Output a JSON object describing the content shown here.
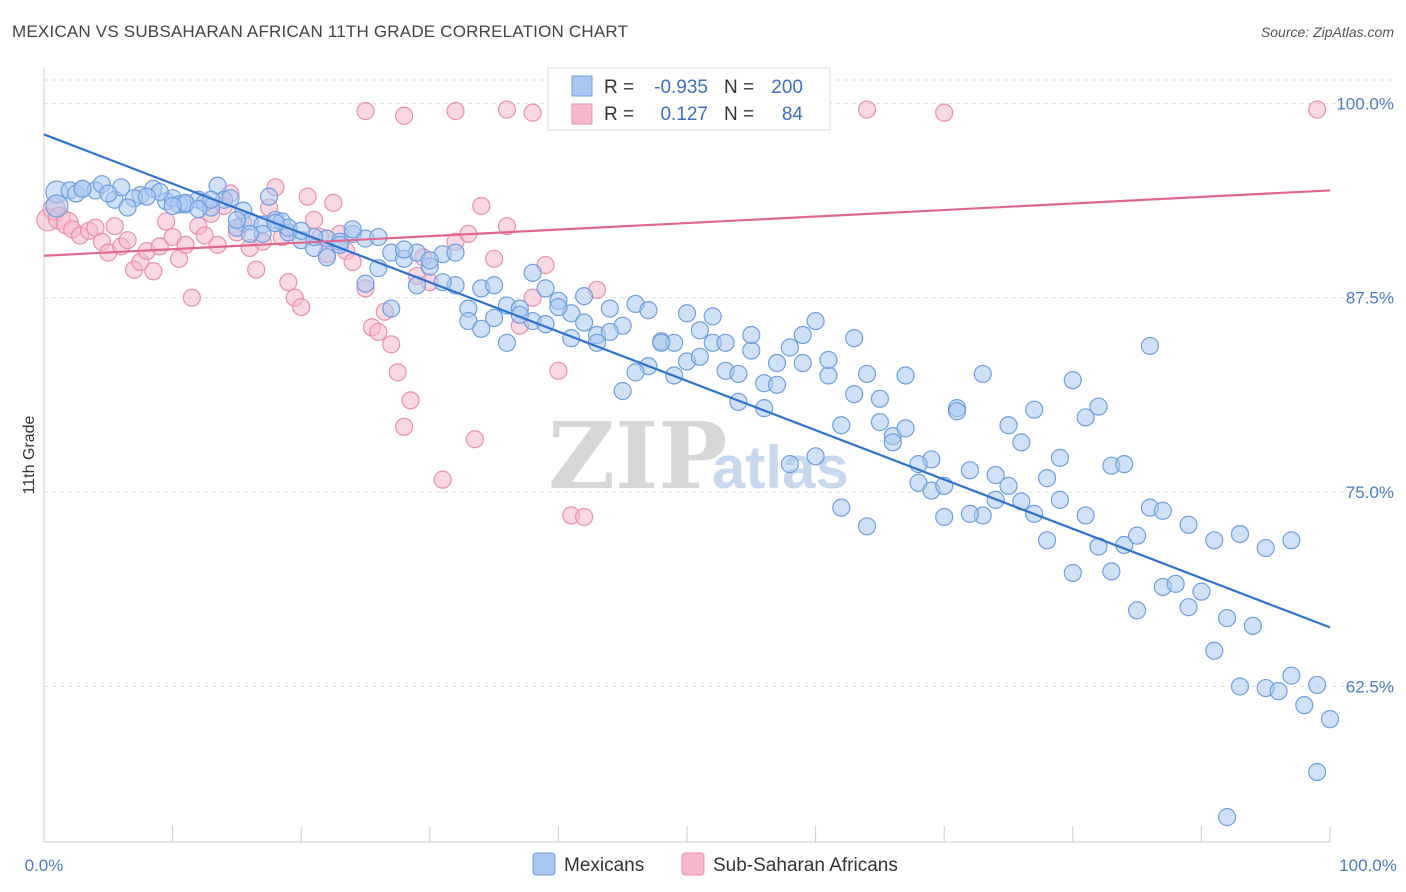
{
  "title": "MEXICAN VS SUBSAHARAN AFRICAN 11TH GRADE CORRELATION CHART",
  "source": "Source: ZipAtlas.com",
  "watermark": {
    "zip": "ZIP",
    "atlas": "atlas"
  },
  "colors": {
    "blue_fill": "#a9c8f0",
    "blue_stroke": "#6f9fe0",
    "blue_line": "#2f73d0",
    "pink_fill": "#f5b8cb",
    "pink_stroke": "#ec8fae",
    "pink_line": "#e0688f",
    "grid": "#dddddd",
    "tick_text": "#4a7cc9"
  },
  "legend_box": {
    "rows": [
      {
        "r_label": "R =",
        "r_value": "-0.935",
        "n_label": "N =",
        "n_value": "200",
        "series": "Mexicans"
      },
      {
        "r_label": "R =",
        "r_value": "0.127",
        "n_label": "N =",
        "n_value": "84",
        "series": "Sub-Saharan Africans"
      }
    ]
  },
  "chart_data": {
    "type": "scatter",
    "title": "MEXICAN VS SUBSAHARAN AFRICAN 11TH GRADE CORRELATION CHART",
    "xlabel": "",
    "ylabel": "11th Grade",
    "xlim": [
      0,
      100
    ],
    "ylim": [
      52.5,
      101.5
    ],
    "x_tick_labels": [
      "0.0%",
      "100.0%"
    ],
    "y_ticks": [
      62.5,
      75.0,
      87.5,
      100.0
    ],
    "y_tick_labels": [
      "62.5%",
      "75.0%",
      "87.5%",
      "100.0%"
    ],
    "grid": true,
    "legend_position": "bottom",
    "series": [
      {
        "name": "Mexicans",
        "color": "#a9c8f0",
        "trend": {
          "x": [
            0,
            100
          ],
          "y": [
            98.0,
            66.3
          ]
        },
        "points": [
          [
            1,
            94.3
          ],
          [
            2,
            94.4
          ],
          [
            2.5,
            94.2
          ],
          [
            3,
            94.5
          ],
          [
            4,
            94.4
          ],
          [
            4.5,
            94.8
          ],
          [
            5.5,
            93.8
          ],
          [
            6,
            94.6
          ],
          [
            7.5,
            94.1
          ],
          [
            8.5,
            94.5
          ],
          [
            9.5,
            93.7
          ],
          [
            10,
            93.9
          ],
          [
            10.5,
            93.5
          ],
          [
            11,
            93.5
          ],
          [
            12,
            93.8
          ],
          [
            12.5,
            93.6
          ],
          [
            13,
            93.3
          ],
          [
            13.5,
            94.7
          ],
          [
            14,
            93.8
          ],
          [
            14.5,
            93.9
          ],
          [
            15,
            92.0
          ],
          [
            15.5,
            93.1
          ],
          [
            16,
            92.4
          ],
          [
            17,
            92.2
          ],
          [
            17.5,
            94.0
          ],
          [
            18,
            92.5
          ],
          [
            18.5,
            92.4
          ],
          [
            19,
            91.7
          ],
          [
            20,
            91.2
          ],
          [
            21,
            90.7
          ],
          [
            22,
            91.3
          ],
          [
            23,
            91.1
          ],
          [
            24,
            91.6
          ],
          [
            25,
            91.3
          ],
          [
            26,
            91.4
          ],
          [
            27,
            90.4
          ],
          [
            28,
            90.0
          ],
          [
            29,
            90.4
          ],
          [
            30,
            89.5
          ],
          [
            31,
            90.3
          ],
          [
            32,
            88.3
          ],
          [
            33,
            86.8
          ],
          [
            34,
            88.1
          ],
          [
            35,
            88.3
          ],
          [
            36,
            87.0
          ],
          [
            37,
            86.8
          ],
          [
            38,
            86.0
          ],
          [
            39,
            88.1
          ],
          [
            40,
            87.3
          ],
          [
            41,
            86.5
          ],
          [
            42,
            85.9
          ],
          [
            43,
            85.1
          ],
          [
            44,
            86.8
          ],
          [
            45,
            85.7
          ],
          [
            46,
            87.1
          ],
          [
            47,
            86.7
          ],
          [
            48,
            84.7
          ],
          [
            49,
            84.6
          ],
          [
            50,
            83.4
          ],
          [
            51,
            85.4
          ],
          [
            52,
            84.6
          ],
          [
            53,
            82.8
          ],
          [
            54,
            82.6
          ],
          [
            55,
            84.1
          ],
          [
            56,
            82.0
          ],
          [
            57,
            81.9
          ],
          [
            58,
            84.3
          ],
          [
            59,
            83.3
          ],
          [
            60,
            86.0
          ],
          [
            61,
            82.5
          ],
          [
            62,
            79.3
          ],
          [
            63,
            81.3
          ],
          [
            64,
            82.6
          ],
          [
            65,
            79.5
          ],
          [
            66,
            78.6
          ],
          [
            67,
            79.1
          ],
          [
            68,
            75.6
          ],
          [
            69,
            75.1
          ],
          [
            70,
            73.4
          ],
          [
            71,
            80.4
          ],
          [
            72,
            76.4
          ],
          [
            73,
            73.5
          ],
          [
            74,
            76.1
          ],
          [
            75,
            75.4
          ],
          [
            76,
            74.4
          ],
          [
            77,
            73.6
          ],
          [
            78,
            71.9
          ],
          [
            79,
            74.5
          ],
          [
            80,
            69.8
          ],
          [
            81,
            73.5
          ],
          [
            82,
            71.5
          ],
          [
            83,
            69.9
          ],
          [
            84,
            71.6
          ],
          [
            85,
            67.4
          ],
          [
            86,
            74.0
          ],
          [
            87,
            68.9
          ],
          [
            88,
            69.1
          ],
          [
            89,
            67.6
          ],
          [
            90,
            68.6
          ],
          [
            91,
            64.8
          ],
          [
            92,
            66.9
          ],
          [
            93,
            62.5
          ],
          [
            94,
            66.4
          ],
          [
            95,
            62.4
          ],
          [
            96,
            62.2
          ],
          [
            97,
            63.2
          ],
          [
            98,
            61.3
          ],
          [
            99,
            62.6
          ],
          [
            100,
            60.4
          ],
          [
            99,
            57.0
          ],
          [
            92,
            54.1
          ],
          [
            97,
            71.9
          ],
          [
            95,
            71.4
          ],
          [
            93,
            72.3
          ],
          [
            91,
            71.9
          ],
          [
            89,
            72.9
          ],
          [
            87,
            73.8
          ],
          [
            85,
            72.2
          ],
          [
            83,
            76.7
          ],
          [
            81,
            79.8
          ],
          [
            79,
            77.2
          ],
          [
            77,
            80.3
          ],
          [
            75,
            79.3
          ],
          [
            73,
            82.6
          ],
          [
            71,
            80.2
          ],
          [
            69,
            77.1
          ],
          [
            67,
            82.5
          ],
          [
            65,
            81.0
          ],
          [
            63,
            84.9
          ],
          [
            61,
            83.5
          ],
          [
            59,
            85.1
          ],
          [
            57,
            83.3
          ],
          [
            55,
            85.1
          ],
          [
            53,
            84.6
          ],
          [
            51,
            83.7
          ],
          [
            49,
            82.5
          ],
          [
            47,
            83.1
          ],
          [
            45,
            81.5
          ],
          [
            43,
            84.6
          ],
          [
            41,
            84.9
          ],
          [
            39,
            85.8
          ],
          [
            37,
            86.4
          ],
          [
            35,
            86.2
          ],
          [
            33,
            86.0
          ],
          [
            31,
            88.5
          ],
          [
            29,
            88.3
          ],
          [
            27,
            86.8
          ],
          [
            25,
            88.4
          ],
          [
            23,
            90.9
          ],
          [
            21,
            91.4
          ],
          [
            19,
            92.0
          ],
          [
            17,
            91.6
          ],
          [
            15,
            92.5
          ],
          [
            13,
            93.8
          ],
          [
            11,
            93.6
          ],
          [
            9,
            94.3
          ],
          [
            7,
            93.9
          ],
          [
            5,
            94.2
          ],
          [
            3,
            94.5
          ],
          [
            1,
            93.4
          ],
          [
            6.5,
            93.3
          ],
          [
            8,
            94.0
          ],
          [
            10,
            93.4
          ],
          [
            12,
            93.2
          ],
          [
            16,
            91.6
          ],
          [
            18,
            92.3
          ],
          [
            20,
            91.8
          ],
          [
            22,
            90.1
          ],
          [
            24,
            91.9
          ],
          [
            26,
            89.4
          ],
          [
            28,
            90.6
          ],
          [
            30,
            89.9
          ],
          [
            32,
            90.4
          ],
          [
            34,
            85.5
          ],
          [
            36,
            84.6
          ],
          [
            38,
            89.1
          ],
          [
            40,
            86.9
          ],
          [
            42,
            87.6
          ],
          [
            44,
            85.3
          ],
          [
            46,
            82.7
          ],
          [
            48,
            84.6
          ],
          [
            50,
            86.5
          ],
          [
            52,
            86.3
          ],
          [
            54,
            80.8
          ],
          [
            56,
            80.4
          ],
          [
            58,
            76.8
          ],
          [
            60,
            77.3
          ],
          [
            62,
            74.0
          ],
          [
            64,
            72.8
          ],
          [
            66,
            78.2
          ],
          [
            68,
            76.8
          ],
          [
            70,
            75.4
          ],
          [
            72,
            73.6
          ],
          [
            74,
            74.5
          ],
          [
            76,
            78.2
          ],
          [
            78,
            75.9
          ],
          [
            80,
            82.2
          ],
          [
            82,
            80.5
          ],
          [
            84,
            76.8
          ],
          [
            86,
            84.4
          ]
        ]
      },
      {
        "name": "Sub-Saharan Africans",
        "color": "#f5b8cb",
        "trend": {
          "x": [
            0,
            100
          ],
          "y": [
            90.2,
            94.4
          ]
        },
        "points": [
          [
            0.3,
            92.5
          ],
          [
            0.8,
            93.2
          ],
          [
            1.2,
            92.6
          ],
          [
            1.8,
            92.3
          ],
          [
            2.2,
            91.9
          ],
          [
            2.8,
            91.5
          ],
          [
            3.5,
            91.8
          ],
          [
            4,
            92.0
          ],
          [
            4.5,
            91.1
          ],
          [
            5,
            90.4
          ],
          [
            5.5,
            92.1
          ],
          [
            6,
            90.8
          ],
          [
            6.5,
            91.2
          ],
          [
            7,
            89.3
          ],
          [
            7.5,
            89.8
          ],
          [
            8,
            90.5
          ],
          [
            8.5,
            89.2
          ],
          [
            9,
            90.8
          ],
          [
            9.5,
            92.4
          ],
          [
            10,
            91.4
          ],
          [
            10.5,
            90.0
          ],
          [
            11,
            90.9
          ],
          [
            11.5,
            87.5
          ],
          [
            12,
            92.1
          ],
          [
            12.5,
            91.5
          ],
          [
            13,
            92.9
          ],
          [
            13.5,
            90.9
          ],
          [
            14,
            93.4
          ],
          [
            14.5,
            94.2
          ],
          [
            15,
            91.7
          ],
          [
            15.5,
            92.3
          ],
          [
            16,
            90.7
          ],
          [
            16.5,
            89.3
          ],
          [
            17,
            91.1
          ],
          [
            17.5,
            93.3
          ],
          [
            18,
            94.6
          ],
          [
            18.5,
            91.4
          ],
          [
            19,
            88.5
          ],
          [
            19.5,
            87.5
          ],
          [
            20,
            86.9
          ],
          [
            20.5,
            94.0
          ],
          [
            21,
            92.5
          ],
          [
            21.5,
            91.4
          ],
          [
            22,
            90.3
          ],
          [
            22.5,
            93.6
          ],
          [
            23,
            91.6
          ],
          [
            23.5,
            90.5
          ],
          [
            24,
            89.8
          ],
          [
            25,
            88.1
          ],
          [
            25.5,
            85.6
          ],
          [
            26,
            85.3
          ],
          [
            26.5,
            86.6
          ],
          [
            27,
            84.5
          ],
          [
            27.5,
            82.7
          ],
          [
            28,
            79.2
          ],
          [
            28.5,
            80.9
          ],
          [
            29,
            88.9
          ],
          [
            29.5,
            90.1
          ],
          [
            30,
            88.5
          ],
          [
            31,
            75.8
          ],
          [
            32,
            91.1
          ],
          [
            33,
            91.6
          ],
          [
            33.5,
            78.4
          ],
          [
            34,
            93.4
          ],
          [
            35,
            90.0
          ],
          [
            36,
            92.1
          ],
          [
            37,
            85.7
          ],
          [
            38,
            87.5
          ],
          [
            39,
            89.6
          ],
          [
            40,
            82.8
          ],
          [
            41,
            73.5
          ],
          [
            42,
            73.4
          ],
          [
            43,
            88.0
          ],
          [
            44,
            99.6
          ],
          [
            25,
            99.5
          ],
          [
            28,
            99.2
          ],
          [
            32,
            99.5
          ],
          [
            36,
            99.6
          ],
          [
            38,
            99.4
          ],
          [
            42,
            99.6
          ],
          [
            50,
            99.5
          ],
          [
            64,
            99.6
          ],
          [
            70,
            99.4
          ],
          [
            99,
            99.6
          ]
        ]
      }
    ]
  },
  "bottom_legend": {
    "items": [
      "Mexicans",
      "Sub-Saharan Africans"
    ]
  }
}
